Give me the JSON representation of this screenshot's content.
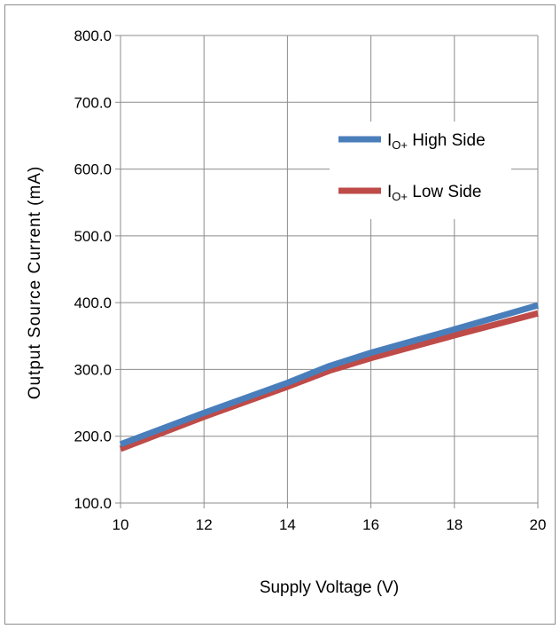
{
  "chart_data": {
    "type": "line",
    "title": "",
    "xlabel": "Supply Voltage (V)",
    "ylabel": "Output Source Current (mA)",
    "xlim": [
      10,
      20
    ],
    "ylim": [
      100,
      800
    ],
    "x_ticks": [
      "10",
      "12",
      "14",
      "16",
      "18",
      "20"
    ],
    "y_ticks": [
      "100.0",
      "200.0",
      "300.0",
      "400.0",
      "500.0",
      "600.0",
      "700.0",
      "800.0"
    ],
    "grid": true,
    "legend_position": "upper-right",
    "series": [
      {
        "name_main": "I",
        "name_sub": "O+",
        "name_rest": " High Side",
        "color": "#4a7ebb",
        "x": [
          10,
          12,
          14,
          15,
          16,
          18,
          20
        ],
        "y": [
          188,
          235,
          280,
          305,
          325,
          360,
          396
        ]
      },
      {
        "name_main": "I",
        "name_sub": "O+",
        "name_rest": " Low Side",
        "color": "#be4b48",
        "x": [
          10,
          12,
          14,
          15,
          16,
          18,
          20
        ],
        "y": [
          181,
          229,
          274,
          298,
          317,
          351,
          384
        ]
      }
    ]
  }
}
